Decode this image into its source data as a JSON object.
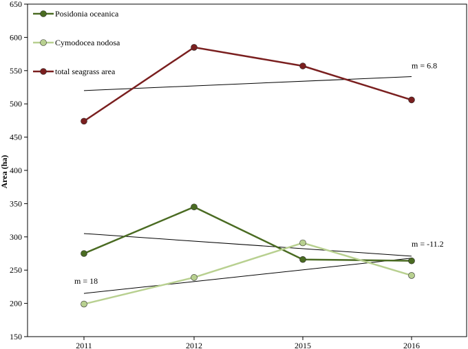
{
  "chart_data": {
    "type": "line",
    "categories": [
      "2011",
      "2012",
      "2015",
      "2016"
    ],
    "ylabel": "Area (ha)",
    "xlabel": "",
    "ylim": [
      150,
      650
    ],
    "yticks": [
      150,
      200,
      250,
      300,
      350,
      400,
      450,
      500,
      550,
      600,
      650
    ],
    "grid": false,
    "legend_position": "top-left",
    "series": [
      {
        "name": "Posidonia oceanica",
        "values": [
          275,
          345,
          266,
          264
        ],
        "color": "#4a6b22"
      },
      {
        "name": "Cymodocea nodosa",
        "values": [
          199,
          239,
          291,
          242
        ],
        "color": "#b8d090"
      },
      {
        "name": "total seagrass area",
        "values": [
          474,
          585,
          557,
          506
        ],
        "color": "#7a1f1f"
      }
    ],
    "trendlines": [
      {
        "label": "m = 6.8",
        "start": 520,
        "end": 541
      },
      {
        "label": "m = -11.2",
        "start": 305,
        "end": 271
      },
      {
        "label": "m = 18",
        "start": 215,
        "end": 268
      }
    ]
  }
}
